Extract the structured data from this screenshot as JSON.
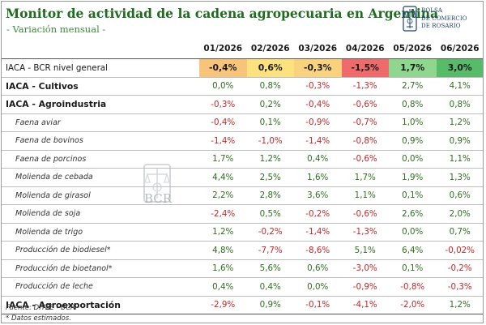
{
  "title": "Monitor de actividad de la cadena agropecuaria en Argentina",
  "subtitle": "- Variación mensual -",
  "logo": {
    "line1": "BOLSA",
    "line2": "DE COMERCIO",
    "line3": "DE ROSARIO",
    "icon": "bcr-seal-icon",
    "color": "#1d3f7a"
  },
  "watermark": {
    "text": "BCR",
    "icon": "bcr-seal-icon"
  },
  "columns": [
    "01/2026",
    "02/2026",
    "03/2026",
    "04/2026",
    "05/2026",
    "06/2026"
  ],
  "rows": [
    {
      "label": "IACA - BCR nivel general",
      "kind": "first",
      "values": [
        "-0,4%",
        "0,6%",
        "-0,3%",
        "-1,5%",
        "1,7%",
        "3,0%"
      ]
    },
    {
      "label": "IACA - Cultivos",
      "kind": "main",
      "values": [
        "0,0%",
        "0,8%",
        "-0,3%",
        "-1,3%",
        "2,7%",
        "4,1%"
      ]
    },
    {
      "label": "IACA - Agroindustria",
      "kind": "main",
      "values": [
        "-0,3%",
        "0,2%",
        "-0,4%",
        "-0,6%",
        "0,8%",
        "0,8%"
      ]
    },
    {
      "label": "Faena aviar",
      "kind": "sub",
      "values": [
        "-0,4%",
        "0,1%",
        "-0,9%",
        "-0,7%",
        "1,0%",
        "1,2%"
      ]
    },
    {
      "label": "Faena de bovinos",
      "kind": "sub",
      "values": [
        "-1,4%",
        "-1,0%",
        "-1,4%",
        "-0,8%",
        "0,9%",
        "0,9%"
      ]
    },
    {
      "label": "Faena de porcinos",
      "kind": "sub",
      "values": [
        "1,7%",
        "1,2%",
        "0,4%",
        "-0,6%",
        "0,0%",
        "1,1%"
      ]
    },
    {
      "label": "Molienda de cebada",
      "kind": "sub",
      "values": [
        "4,4%",
        "2,5%",
        "1,6%",
        "1,7%",
        "1,9%",
        "1,3%"
      ]
    },
    {
      "label": "Molienda de girasol",
      "kind": "sub",
      "values": [
        "2,2%",
        "2,8%",
        "3,6%",
        "1,1%",
        "0,1%",
        "0,6%"
      ]
    },
    {
      "label": "Molienda de soja",
      "kind": "sub",
      "values": [
        "-2,4%",
        "0,5%",
        "-0,2%",
        "-0,6%",
        "2,6%",
        "2,0%"
      ]
    },
    {
      "label": "Molienda de trigo",
      "kind": "sub",
      "values": [
        "1,2%",
        "-0,2%",
        "-1,4%",
        "-1,3%",
        "0,0%",
        "0,7%"
      ]
    },
    {
      "label": "Producción de biodiesel*",
      "kind": "sub",
      "values": [
        "4,8%",
        "-7,7%",
        "-8,6%",
        "5,1%",
        "6,4%",
        "-0,02%"
      ]
    },
    {
      "label": "Producción de bioetanol*",
      "kind": "sub",
      "values": [
        "1,6%",
        "5,6%",
        "0,6%",
        "-3,0%",
        "0,1%",
        "-0,2%"
      ]
    },
    {
      "label": "Producción de leche",
      "kind": "sub",
      "values": [
        "0,4%",
        "0,4%",
        "0,0%",
        "-0,9%",
        "-0,8%",
        "-0,3%"
      ]
    },
    {
      "label": "IACA - Agroexportación",
      "kind": "main last",
      "values": [
        "-2,9%",
        "0,9%",
        "-0,1%",
        "-4,1%",
        "-2,0%",
        "1,2%"
      ]
    }
  ],
  "heat_colors": [
    "#f7c47a",
    "#fbe27f",
    "#f9d27d",
    "#ef6b6b",
    "#8fd68f",
    "#57bb6a"
  ],
  "footnotes": [
    "Fuente: DIYEE - BCR",
    "* Datos estimados."
  ]
}
